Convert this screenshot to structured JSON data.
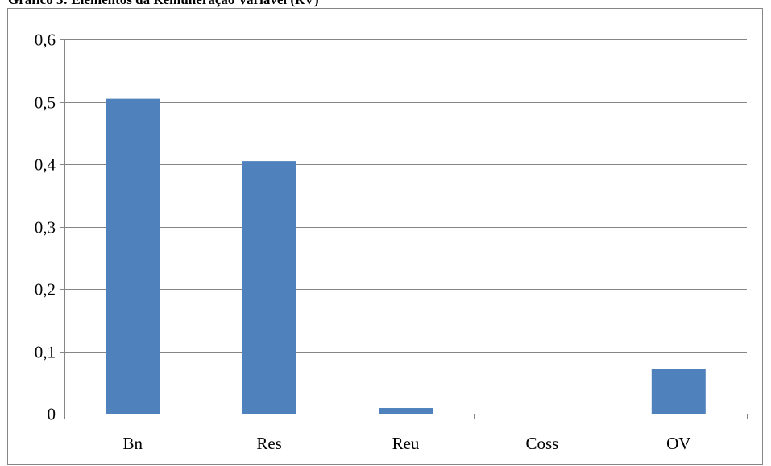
{
  "chart_data": {
    "type": "bar",
    "title": "Gráfico 3: Elementos da Remuneração Variável (RV)",
    "xlabel": "",
    "ylabel": "",
    "categories": [
      "Bn",
      "Res",
      "Reu",
      "Coss",
      "OV"
    ],
    "values": [
      0.505,
      0.405,
      0.009,
      0,
      0.071
    ],
    "ylim": [
      0,
      0.6
    ],
    "y_ticks": [
      0,
      0.1,
      0.2,
      0.3,
      0.4,
      0.5,
      0.6
    ],
    "y_tick_labels": [
      "0",
      "0,1",
      "0,2",
      "0,3",
      "0,4",
      "0,5",
      "0,6"
    ],
    "grid": true,
    "legend": "none",
    "bar_color": "#4F81BD",
    "grid_color": "#868686"
  }
}
